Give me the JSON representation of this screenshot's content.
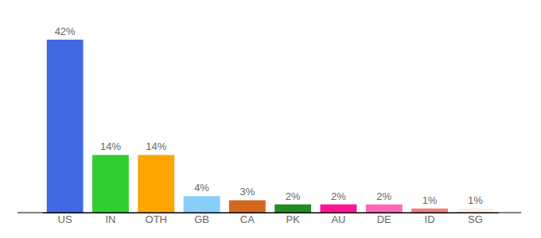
{
  "chart_data": {
    "type": "bar",
    "categories": [
      "US",
      "IN",
      "OTH",
      "GB",
      "CA",
      "PK",
      "AU",
      "DE",
      "ID",
      "SG"
    ],
    "values": [
      42,
      14,
      14,
      4,
      3,
      2,
      2,
      2,
      1,
      1
    ],
    "value_labels": [
      "42%",
      "14%",
      "14%",
      "4%",
      "3%",
      "2%",
      "2%",
      "2%",
      "1%",
      "1%"
    ],
    "colors": [
      "#4169e1",
      "#32cd32",
      "#ffa500",
      "#87cefa",
      "#d2691e",
      "#228b22",
      "#ff1493",
      "#ff69b4",
      "#f08080",
      "#faf0e6"
    ],
    "data_labels": true,
    "tick_labels": "x"
  }
}
